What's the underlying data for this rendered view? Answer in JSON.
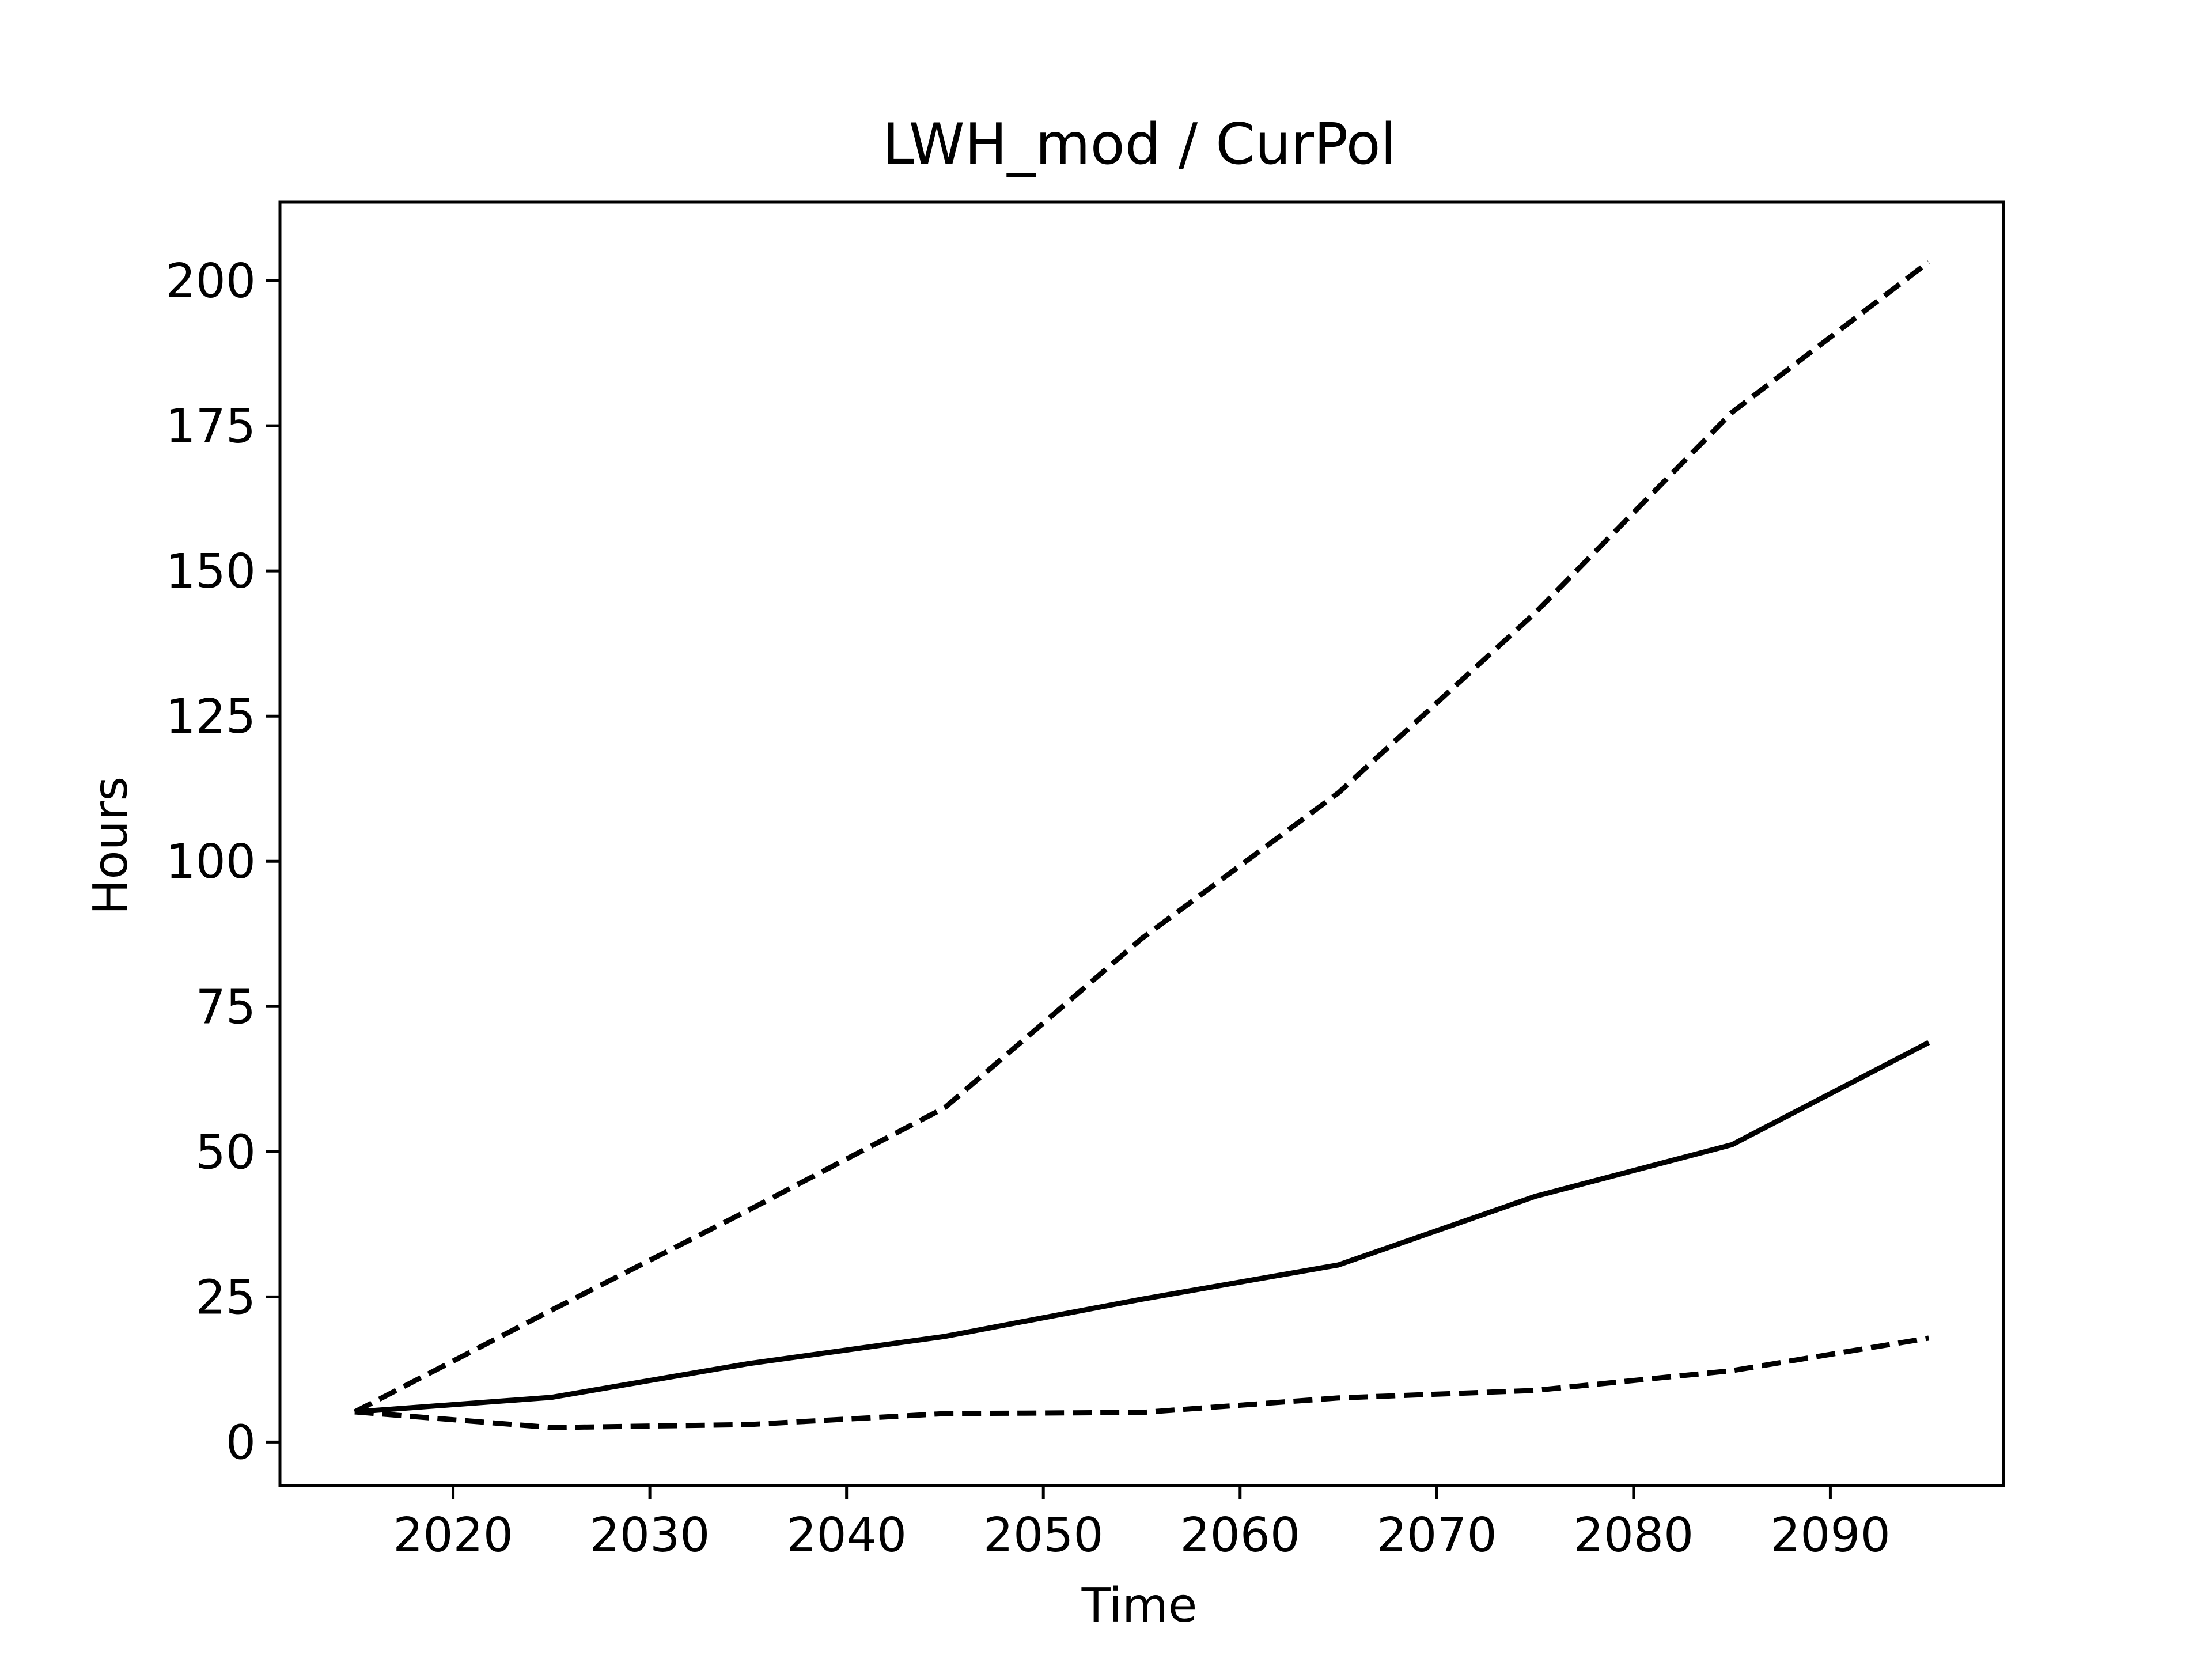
{
  "chart_data": {
    "type": "line",
    "title": "LWH_mod / CurPol",
    "xlabel": "Time",
    "ylabel": "Hours",
    "xlim": [
      2011.2,
      2098.8
    ],
    "ylim": [
      -7.5,
      213.5
    ],
    "xticks": [
      2020,
      2030,
      2040,
      2050,
      2060,
      2070,
      2080,
      2090
    ],
    "yticks": [
      0,
      25,
      50,
      75,
      100,
      125,
      150,
      175,
      200
    ],
    "grid": false,
    "legend": "none",
    "line_color": "#000000",
    "x": [
      2015,
      2025,
      2035,
      2045,
      2055,
      2065,
      2075,
      2085,
      2095
    ],
    "series": [
      {
        "style": "solid",
        "values": [
          5.2,
          7.7,
          13.5,
          18.2,
          24.6,
          30.5,
          42.3,
          51.2,
          68.8
        ]
      },
      {
        "style": "dashed",
        "values": [
          5.2,
          22.7,
          39.9,
          57.6,
          86.7,
          111.8,
          142.8,
          177.3,
          203.2
        ]
      },
      {
        "style": "dashed",
        "values": [
          5.2,
          2.5,
          3.0,
          4.9,
          5.1,
          7.6,
          8.9,
          12.3,
          17.9
        ]
      }
    ]
  }
}
